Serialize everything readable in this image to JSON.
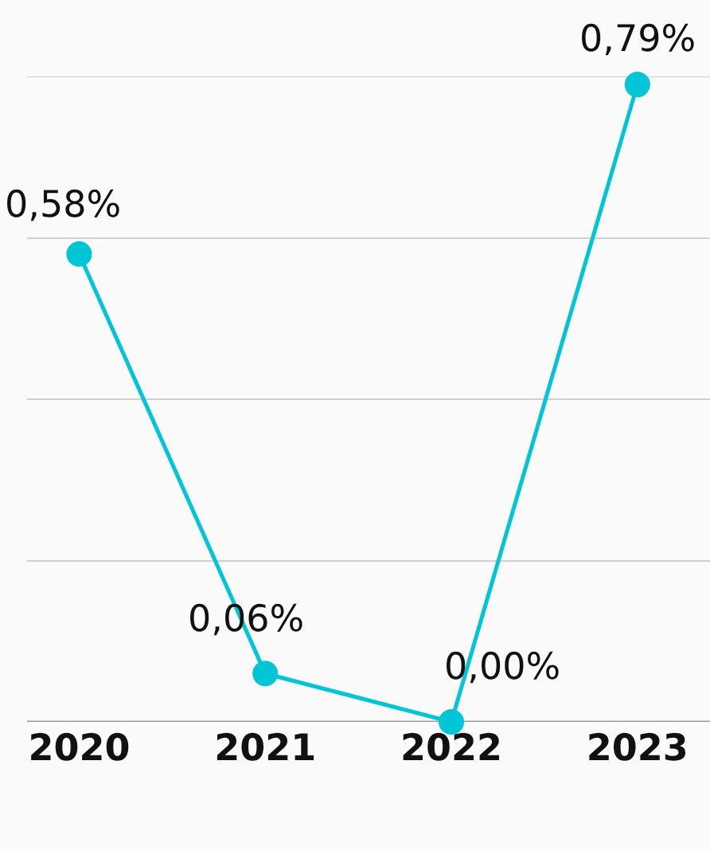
{
  "chart_data": {
    "type": "line",
    "categories": [
      "2020",
      "2021",
      "2022",
      "2023"
    ],
    "series": [
      {
        "color": "#00c5d6",
        "values": [
          0.58,
          0.06,
          0.0,
          0.79
        ],
        "value_labels": [
          "0,58%",
          "0,06%",
          "0,00%",
          "0,79%"
        ]
      }
    ],
    "ylim": [
      0,
      0.8
    ],
    "tick_labels": "x",
    "grid": "y",
    "marker": "circle",
    "line_style": "solid",
    "legend": false
  }
}
